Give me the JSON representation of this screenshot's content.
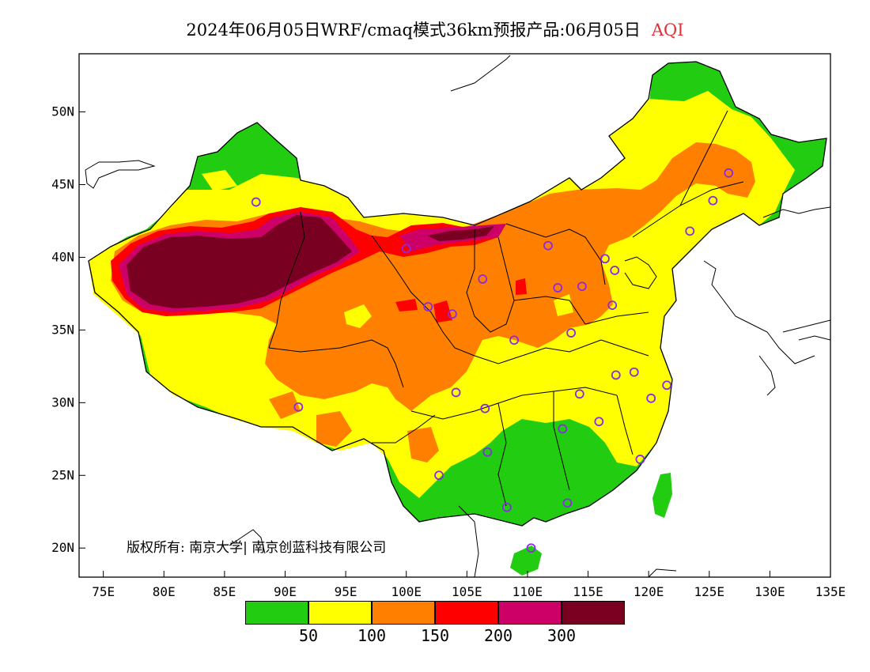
{
  "title": {
    "main": "2024年06月05日WRF/cmaq模式36km预报产品:06月05日",
    "product": "AQI"
  },
  "map": {
    "lat_labels": [
      "50N",
      "45N",
      "40N",
      "35N",
      "30N",
      "25N",
      "20N"
    ],
    "lat_values": [
      50,
      45,
      40,
      35,
      30,
      25,
      20
    ],
    "lon_labels": [
      "75E",
      "80E",
      "85E",
      "90E",
      "95E",
      "100E",
      "105E",
      "110E",
      "115E",
      "120E",
      "125E",
      "130E",
      "135E"
    ],
    "lon_values": [
      75,
      80,
      85,
      90,
      95,
      100,
      105,
      110,
      115,
      120,
      125,
      130,
      135
    ],
    "lon_range": [
      73,
      135
    ],
    "lat_range": [
      18,
      54
    ],
    "cities": [
      [
        87.6,
        43.8
      ],
      [
        91.1,
        29.7
      ],
      [
        101.8,
        36.6
      ],
      [
        103.8,
        36.1
      ],
      [
        106.3,
        38.5
      ],
      [
        100.0,
        40.6
      ],
      [
        111.7,
        40.8
      ],
      [
        112.5,
        37.9
      ],
      [
        114.5,
        38.0
      ],
      [
        116.4,
        39.9
      ],
      [
        117.2,
        39.1
      ],
      [
        117.0,
        36.7
      ],
      [
        113.6,
        34.8
      ],
      [
        108.9,
        34.3
      ],
      [
        104.1,
        30.7
      ],
      [
        106.5,
        29.6
      ],
      [
        114.3,
        30.6
      ],
      [
        117.3,
        31.9
      ],
      [
        118.8,
        32.1
      ],
      [
        121.5,
        31.2
      ],
      [
        120.2,
        30.3
      ],
      [
        115.9,
        28.7
      ],
      [
        112.9,
        28.2
      ],
      [
        106.7,
        26.6
      ],
      [
        102.7,
        25.0
      ],
      [
        108.3,
        22.8
      ],
      [
        113.3,
        23.1
      ],
      [
        119.3,
        26.1
      ],
      [
        110.3,
        20.0
      ],
      [
        123.4,
        41.8
      ],
      [
        125.3,
        43.9
      ],
      [
        126.6,
        45.8
      ]
    ]
  },
  "copyright": "版权所有: 南京大学| 南京创蓝科技有限公司",
  "legend": {
    "colors": [
      "#22cc11",
      "#ffff00",
      "#ff8000",
      "#ff0000",
      "#cc0066",
      "#7a0022"
    ],
    "labels": [
      "50",
      "100",
      "150",
      "200",
      "300"
    ]
  }
}
